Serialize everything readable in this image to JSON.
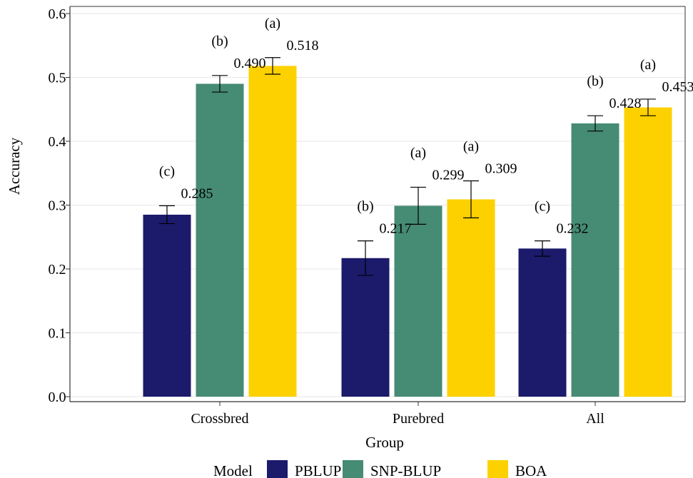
{
  "chart_data": {
    "type": "bar",
    "xlabel": "Group",
    "ylabel": "Accuracy",
    "ylim": [
      0,
      0.6
    ],
    "yticks": [
      "0.0",
      "0.1",
      "0.2",
      "0.3",
      "0.4",
      "0.5",
      "0.6"
    ],
    "categories": [
      "Crossbred",
      "Purebred",
      "All"
    ],
    "grid": "horizontal",
    "legend": {
      "title": "Model",
      "position": "bottom"
    },
    "series": [
      {
        "name": "PBLUP",
        "color": "#1b1a6b",
        "values": [
          0.285,
          0.217,
          0.232
        ],
        "labels": [
          "0.285",
          "0.217",
          "0.232"
        ],
        "error": [
          0.014,
          0.027,
          0.012
        ],
        "letters": [
          "(c)",
          "(b)",
          "(c)"
        ]
      },
      {
        "name": "SNP-BLUP",
        "color": "#468b73",
        "values": [
          0.49,
          0.299,
          0.428
        ],
        "labels": [
          "0.490",
          "0.299",
          "0.428"
        ],
        "error": [
          0.013,
          0.029,
          0.012
        ],
        "letters": [
          "(b)",
          "(a)",
          "(b)"
        ]
      },
      {
        "name": "BOA",
        "color": "#fdd100",
        "values": [
          0.518,
          0.309,
          0.453
        ],
        "labels": [
          "0.518",
          "0.309",
          "0.453"
        ],
        "error": [
          0.013,
          0.029,
          0.013
        ],
        "letters": [
          "(a)",
          "(a)",
          "(a)"
        ]
      }
    ]
  }
}
